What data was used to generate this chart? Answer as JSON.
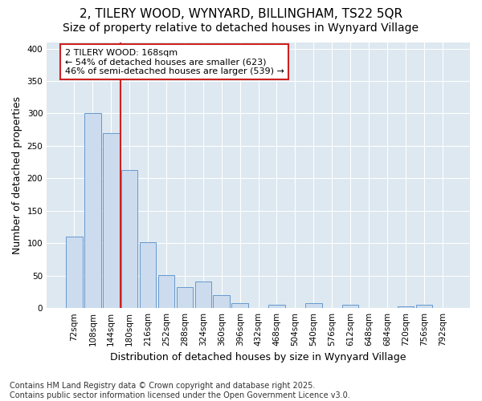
{
  "title_line1": "2, TILERY WOOD, WYNYARD, BILLINGHAM, TS22 5QR",
  "title_line2": "Size of property relative to detached houses in Wynyard Village",
  "xlabel": "Distribution of detached houses by size in Wynyard Village",
  "ylabel": "Number of detached properties",
  "categories": [
    "72sqm",
    "108sqm",
    "144sqm",
    "180sqm",
    "216sqm",
    "252sqm",
    "288sqm",
    "324sqm",
    "360sqm",
    "396sqm",
    "432sqm",
    "468sqm",
    "504sqm",
    "540sqm",
    "576sqm",
    "612sqm",
    "648sqm",
    "684sqm",
    "720sqm",
    "756sqm",
    "792sqm"
  ],
  "values": [
    110,
    300,
    270,
    213,
    102,
    51,
    32,
    41,
    20,
    8,
    0,
    5,
    0,
    8,
    0,
    5,
    0,
    0,
    3,
    5
  ],
  "bar_color": "#ccdcee",
  "bar_edge_color": "#6699cc",
  "vline_color": "#cc2222",
  "annotation_text": "2 TILERY WOOD: 168sqm\n← 54% of detached houses are smaller (623)\n46% of semi-detached houses are larger (539) →",
  "annotation_box_facecolor": "white",
  "annotation_box_edgecolor": "#cc2222",
  "footnote": "Contains HM Land Registry data © Crown copyright and database right 2025.\nContains public sector information licensed under the Open Government Licence v3.0.",
  "ylim": [
    0,
    410
  ],
  "fig_bg_color": "#ffffff",
  "plot_bg_color": "#dde8f0",
  "grid_color": "#ffffff",
  "title_fontsize": 11,
  "subtitle_fontsize": 10,
  "axis_label_fontsize": 9,
  "tick_fontsize": 7.5,
  "annotation_fontsize": 8,
  "footnote_fontsize": 7
}
